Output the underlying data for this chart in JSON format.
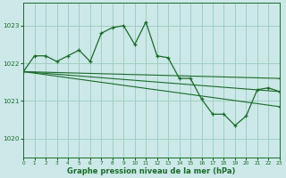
{
  "background_color": "#cce8e8",
  "grid_color": "#99ccbb",
  "line_color": "#1a6b2a",
  "xlabel": "Graphe pression niveau de la mer (hPa)",
  "xlim": [
    0,
    23
  ],
  "ylim": [
    1019.5,
    1023.6
  ],
  "yticks": [
    1020,
    1021,
    1022,
    1023
  ],
  "xticks": [
    0,
    1,
    2,
    3,
    4,
    5,
    6,
    7,
    8,
    9,
    10,
    11,
    12,
    13,
    14,
    15,
    16,
    17,
    18,
    19,
    20,
    21,
    22,
    23
  ],
  "series": [
    {
      "x": [
        0,
        1,
        2,
        3,
        4,
        5,
        6,
        7,
        8,
        9,
        10,
        11,
        12,
        13,
        14,
        15,
        16,
        17,
        18,
        19,
        20,
        21,
        22,
        23
      ],
      "y": [
        1021.78,
        1022.2,
        1022.2,
        1022.05,
        1022.2,
        1022.35,
        1022.05,
        1022.8,
        1022.95,
        1023.0,
        1022.5,
        1023.1,
        1022.2,
        1022.15,
        1021.6,
        1021.6,
        1021.05,
        1020.65,
        1020.65,
        1020.35,
        1020.6,
        1021.3,
        1021.35,
        1021.25
      ]
    },
    {
      "x": [
        0,
        23
      ],
      "y": [
        1021.78,
        1021.6
      ]
    },
    {
      "x": [
        0,
        23
      ],
      "y": [
        1021.78,
        1021.25
      ]
    },
    {
      "x": [
        0,
        23
      ],
      "y": [
        1021.78,
        1020.85
      ]
    }
  ]
}
